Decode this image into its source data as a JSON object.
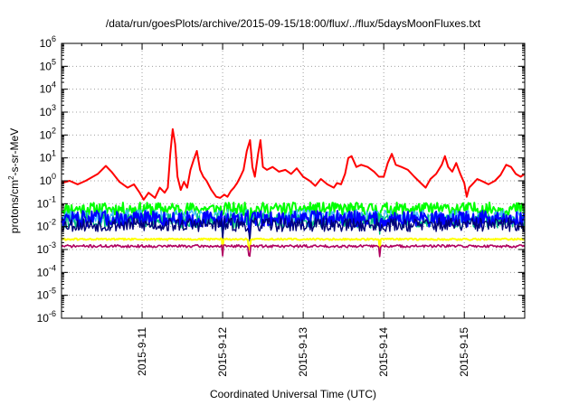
{
  "chart_data": {
    "type": "line",
    "title": "/data/run/goesPlots/archive/2015-09-15/18:00/flux/../flux/5daysMoonFluxes.txt",
    "xlabel": "Coordinated Universal Time (UTC)",
    "ylabel": {
      "base": "protons/cm",
      "sup": "2",
      "rest": "-s-sr-MeV"
    },
    "yscale": "log",
    "ylim": [
      1e-06,
      1000000.0
    ],
    "xlim": [
      0,
      5.75
    ],
    "x_origin_label": "2015-09-10 06:00",
    "grid": true,
    "y_ticks": [
      {
        "exp": -6,
        "base": "10",
        "sup": "-6"
      },
      {
        "exp": -5,
        "base": "10",
        "sup": "-5"
      },
      {
        "exp": -4,
        "base": "10",
        "sup": "-4"
      },
      {
        "exp": -3,
        "base": "10",
        "sup": "-3"
      },
      {
        "exp": -2,
        "base": "10",
        "sup": "-2"
      },
      {
        "exp": -1,
        "base": "10",
        "sup": "-1"
      },
      {
        "exp": 0,
        "base": "10",
        "sup": "0"
      },
      {
        "exp": 1,
        "base": "10",
        "sup": "1"
      },
      {
        "exp": 2,
        "base": "10",
        "sup": "2"
      },
      {
        "exp": 3,
        "base": "10",
        "sup": "3"
      },
      {
        "exp": 4,
        "base": "10",
        "sup": "4"
      },
      {
        "exp": 5,
        "base": "10",
        "sup": "5"
      },
      {
        "exp": 6,
        "base": "10",
        "sup": "6"
      }
    ],
    "x_ticks": [
      {
        "x": 1,
        "label": "2015-9-11"
      },
      {
        "x": 2,
        "label": "2015-9-12"
      },
      {
        "x": 3,
        "label": "2015-9-13"
      },
      {
        "x": 4,
        "label": "2015-9-14"
      },
      {
        "x": 5,
        "label": "2015-9-15"
      }
    ],
    "series": [
      {
        "color": "#ff0000",
        "width": 2,
        "points": [
          [
            0,
            0.8
          ],
          [
            0.1,
            1.0
          ],
          [
            0.2,
            0.7
          ],
          [
            0.3,
            1.0
          ],
          [
            0.45,
            2.0
          ],
          [
            0.55,
            4.5
          ],
          [
            0.62,
            2.5
          ],
          [
            0.72,
            0.9
          ],
          [
            0.82,
            0.5
          ],
          [
            0.9,
            0.7
          ],
          [
            0.97,
            0.3
          ],
          [
            1.02,
            0.15
          ],
          [
            1.08,
            0.3
          ],
          [
            1.16,
            0.18
          ],
          [
            1.22,
            0.5
          ],
          [
            1.28,
            0.3
          ],
          [
            1.32,
            0.5
          ],
          [
            1.35,
            15
          ],
          [
            1.38,
            180
          ],
          [
            1.41,
            40
          ],
          [
            1.44,
            1.5
          ],
          [
            1.48,
            0.4
          ],
          [
            1.52,
            0.9
          ],
          [
            1.56,
            0.5
          ],
          [
            1.6,
            3
          ],
          [
            1.64,
            8
          ],
          [
            1.68,
            20
          ],
          [
            1.72,
            3
          ],
          [
            1.76,
            1.5
          ],
          [
            1.8,
            1.0
          ],
          [
            1.86,
            0.4
          ],
          [
            1.92,
            0.2
          ],
          [
            1.97,
            0.18
          ],
          [
            2.02,
            0.25
          ],
          [
            2.06,
            0.2
          ],
          [
            2.1,
            0.35
          ],
          [
            2.14,
            0.5
          ],
          [
            2.18,
            0.8
          ],
          [
            2.22,
            1.5
          ],
          [
            2.26,
            3
          ],
          [
            2.3,
            20
          ],
          [
            2.34,
            60
          ],
          [
            2.37,
            4
          ],
          [
            2.4,
            1.5
          ],
          [
            2.44,
            15
          ],
          [
            2.47,
            60
          ],
          [
            2.5,
            4
          ],
          [
            2.55,
            3
          ],
          [
            2.62,
            4
          ],
          [
            2.7,
            2.5
          ],
          [
            2.78,
            3
          ],
          [
            2.85,
            2
          ],
          [
            2.92,
            3.5
          ],
          [
            3.0,
            1.5
          ],
          [
            3.08,
            1.0
          ],
          [
            3.15,
            0.6
          ],
          [
            3.22,
            1.2
          ],
          [
            3.3,
            0.7
          ],
          [
            3.38,
            0.5
          ],
          [
            3.42,
            0.8
          ],
          [
            3.47,
            0.7
          ],
          [
            3.52,
            2
          ],
          [
            3.56,
            10
          ],
          [
            3.6,
            12
          ],
          [
            3.66,
            4
          ],
          [
            3.72,
            5
          ],
          [
            3.8,
            4
          ],
          [
            3.88,
            2.5
          ],
          [
            3.94,
            1.5
          ],
          [
            4.0,
            1.5
          ],
          [
            4.05,
            6
          ],
          [
            4.1,
            15
          ],
          [
            4.15,
            5
          ],
          [
            4.22,
            4
          ],
          [
            4.3,
            3
          ],
          [
            4.38,
            1.5
          ],
          [
            4.46,
            0.8
          ],
          [
            4.52,
            0.5
          ],
          [
            4.58,
            1.2
          ],
          [
            4.65,
            2
          ],
          [
            4.72,
            5
          ],
          [
            4.76,
            12
          ],
          [
            4.8,
            4
          ],
          [
            4.85,
            2.5
          ],
          [
            4.9,
            6
          ],
          [
            4.95,
            2
          ],
          [
            5.0,
            0.8
          ],
          [
            5.03,
            0.2
          ],
          [
            5.06,
            0.5
          ],
          [
            5.1,
            0.7
          ],
          [
            5.16,
            1.2
          ],
          [
            5.24,
            0.9
          ],
          [
            5.3,
            0.7
          ],
          [
            5.38,
            1.0
          ],
          [
            5.45,
            1.8
          ],
          [
            5.52,
            5
          ],
          [
            5.58,
            4
          ],
          [
            5.64,
            2
          ],
          [
            5.7,
            1.5
          ],
          [
            5.75,
            2
          ]
        ]
      },
      {
        "color": "#00ff00",
        "width": 2,
        "base": 0.06,
        "jitter": 0.55,
        "seed": 11
      },
      {
        "color": "#3fb8ff",
        "width": 1.4,
        "base": 0.028,
        "jitter": 0.6,
        "seed": 23
      },
      {
        "color": "#00c080",
        "width": 1.4,
        "base": 0.018,
        "jitter": 0.65,
        "seed": 31
      },
      {
        "color": "#0000ff",
        "width": 2,
        "base": 0.022,
        "jitter": 0.7,
        "seed": 47
      },
      {
        "color": "#00007a",
        "width": 1.4,
        "base": 0.012,
        "jitter": 0.6,
        "seed": 53
      },
      {
        "color": "#ffff00",
        "width": 2,
        "base": 0.0028,
        "jitter": 0.08,
        "seed": 61
      },
      {
        "color": "#b00060",
        "width": 1.6,
        "base": 0.0014,
        "jitter": 0.12,
        "seed": 71
      }
    ],
    "dips": [
      2.0,
      2.33,
      3.95
    ]
  }
}
